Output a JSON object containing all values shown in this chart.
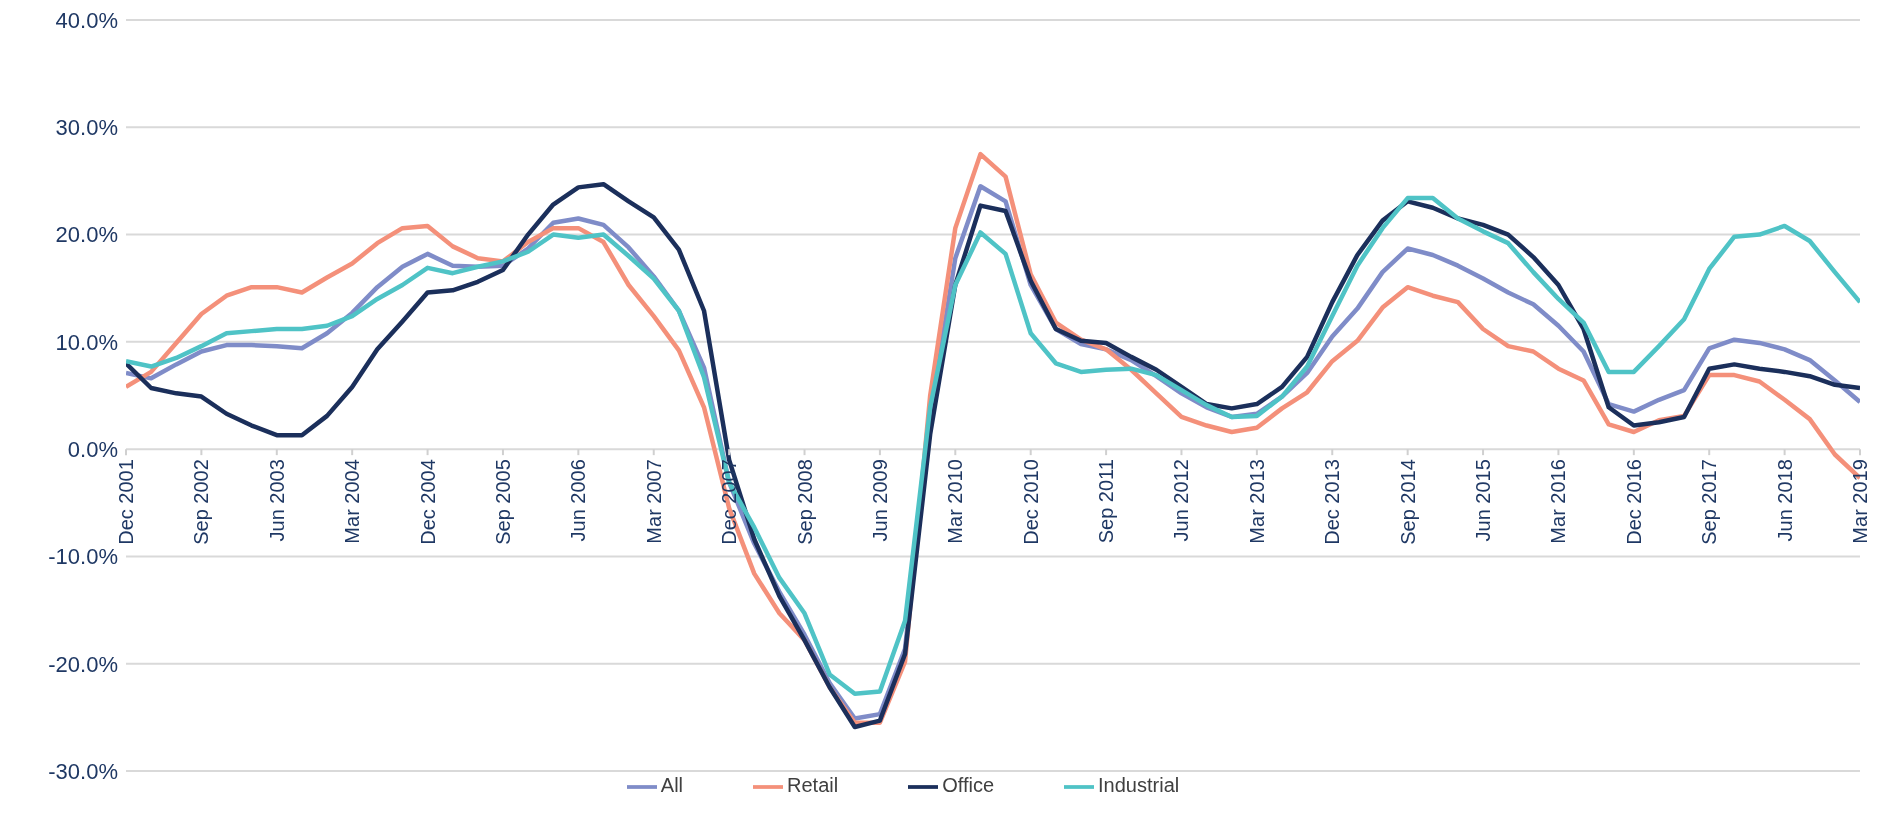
{
  "chart_data": {
    "type": "line",
    "categories": [
      "Dec 2001",
      null,
      null,
      "Sep 2002",
      null,
      null,
      "Jun 2003",
      null,
      null,
      "Mar 2004",
      null,
      null,
      "Dec 2004",
      null,
      null,
      "Sep 2005",
      null,
      null,
      "Jun 2006",
      null,
      null,
      "Mar 2007",
      null,
      null,
      "Dec 2007",
      null,
      null,
      "Sep 2008",
      null,
      null,
      "Jun 2009",
      null,
      null,
      "Mar 2010",
      null,
      null,
      "Dec 2010",
      null,
      null,
      "Sep 2011",
      null,
      null,
      "Jun 2012",
      null,
      null,
      "Mar 2013",
      null,
      null,
      "Dec 2013",
      null,
      null,
      "Sep 2014",
      null,
      null,
      "Jun 2015",
      null,
      null,
      "Mar 2016",
      null,
      null,
      "Dec 2016",
      null,
      null,
      "Sep 2017",
      null,
      null,
      "Jun 2018",
      null,
      null,
      "Mar 2019"
    ],
    "series": [
      {
        "name": "All",
        "color": "#7f8cc8",
        "values": [
          7.1,
          6.6,
          7.9,
          9.1,
          9.7,
          9.7,
          9.6,
          9.4,
          10.8,
          12.7,
          15.1,
          17.0,
          18.2,
          17.1,
          17.0,
          17.1,
          18.7,
          21.1,
          21.5,
          20.9,
          18.8,
          16.1,
          12.9,
          7.6,
          -3.1,
          -8.8,
          -13.3,
          -17.3,
          -21.8,
          -25.1,
          -24.7,
          -18.6,
          3.0,
          17.8,
          24.5,
          23.1,
          15.3,
          11.2,
          9.8,
          9.3,
          8.3,
          6.8,
          5.2,
          3.9,
          3.0,
          3.3,
          4.9,
          7.1,
          10.5,
          13.1,
          16.5,
          18.7,
          18.1,
          17.1,
          15.9,
          14.6,
          13.5,
          11.5,
          9.1,
          4.2,
          3.5,
          4.6,
          5.5,
          9.4,
          10.2,
          9.9,
          9.3,
          8.3,
          6.4,
          4.4
        ]
      },
      {
        "name": "Retail",
        "color": "#f4907a",
        "values": [
          5.8,
          7.2,
          9.9,
          12.6,
          14.3,
          15.1,
          15.1,
          14.6,
          16.0,
          17.3,
          19.2,
          20.6,
          20.8,
          18.9,
          17.8,
          17.5,
          19.3,
          20.6,
          20.6,
          19.3,
          15.3,
          12.4,
          9.2,
          3.9,
          -5.5,
          -11.6,
          -15.3,
          -17.8,
          -22.2,
          -25.5,
          -25.5,
          -19.8,
          5.0,
          20.6,
          27.5,
          25.4,
          16.3,
          11.8,
          10.2,
          9.3,
          7.4,
          5.2,
          3.0,
          2.2,
          1.6,
          2.0,
          3.8,
          5.3,
          8.2,
          10.1,
          13.2,
          15.1,
          14.3,
          13.7,
          11.2,
          9.6,
          9.1,
          7.5,
          6.4,
          2.3,
          1.6,
          2.7,
          3.1,
          6.9,
          6.9,
          6.3,
          4.6,
          2.8,
          -0.5,
          -2.7
        ]
      },
      {
        "name": "Office",
        "color": "#1b2f5b",
        "values": [
          8.0,
          5.7,
          5.2,
          4.9,
          3.3,
          2.2,
          1.3,
          1.3,
          3.1,
          5.8,
          9.3,
          11.9,
          14.6,
          14.8,
          15.6,
          16.7,
          20.0,
          22.8,
          24.4,
          24.7,
          23.1,
          21.6,
          18.6,
          12.9,
          -1.0,
          -8.4,
          -13.7,
          -17.8,
          -22.2,
          -25.9,
          -25.3,
          -19.1,
          1.4,
          15.3,
          22.7,
          22.2,
          15.7,
          11.2,
          10.1,
          9.9,
          8.6,
          7.4,
          5.8,
          4.2,
          3.8,
          4.2,
          5.8,
          8.6,
          13.7,
          18.1,
          21.3,
          23.1,
          22.5,
          21.5,
          20.9,
          20.0,
          17.9,
          15.3,
          11.2,
          3.9,
          2.2,
          2.5,
          3.0,
          7.5,
          7.9,
          7.5,
          7.2,
          6.8,
          6.0,
          5.7
        ]
      },
      {
        "name": "Industrial",
        "color": "#4fc3c6",
        "values": [
          8.2,
          7.7,
          8.5,
          9.6,
          10.8,
          11.0,
          11.2,
          11.2,
          11.5,
          12.4,
          14.0,
          15.3,
          16.9,
          16.4,
          17.0,
          17.5,
          18.4,
          20.0,
          19.7,
          20.0,
          18.0,
          15.9,
          12.9,
          6.7,
          -3.1,
          -7.3,
          -12.0,
          -15.3,
          -21.0,
          -22.8,
          -22.6,
          -16.0,
          3.9,
          15.3,
          20.2,
          18.2,
          10.8,
          8.0,
          7.2,
          7.4,
          7.5,
          6.9,
          5.5,
          4.1,
          3.0,
          3.1,
          4.9,
          7.7,
          12.4,
          17.1,
          20.6,
          23.4,
          23.4,
          21.5,
          20.3,
          19.2,
          16.5,
          14.0,
          11.8,
          7.2,
          7.2,
          9.6,
          12.1,
          16.8,
          19.8,
          20.0,
          20.8,
          19.4,
          16.5,
          13.7
        ]
      }
    ],
    "ylim": [
      -30,
      40
    ],
    "yticks": [
      {
        "value": -30,
        "label": "-30.0%"
      },
      {
        "value": -20,
        "label": "-20.0%"
      },
      {
        "value": -10,
        "label": "-10.0%"
      },
      {
        "value": 0,
        "label": "0.0%"
      },
      {
        "value": 10,
        "label": "10.0%"
      },
      {
        "value": 20,
        "label": "20.0%"
      },
      {
        "value": 30,
        "label": "30.0%"
      },
      {
        "value": 40,
        "label": "40.0%"
      }
    ],
    "grid": "y",
    "legend": "bottom",
    "marker": "none",
    "line_style": "solid"
  }
}
